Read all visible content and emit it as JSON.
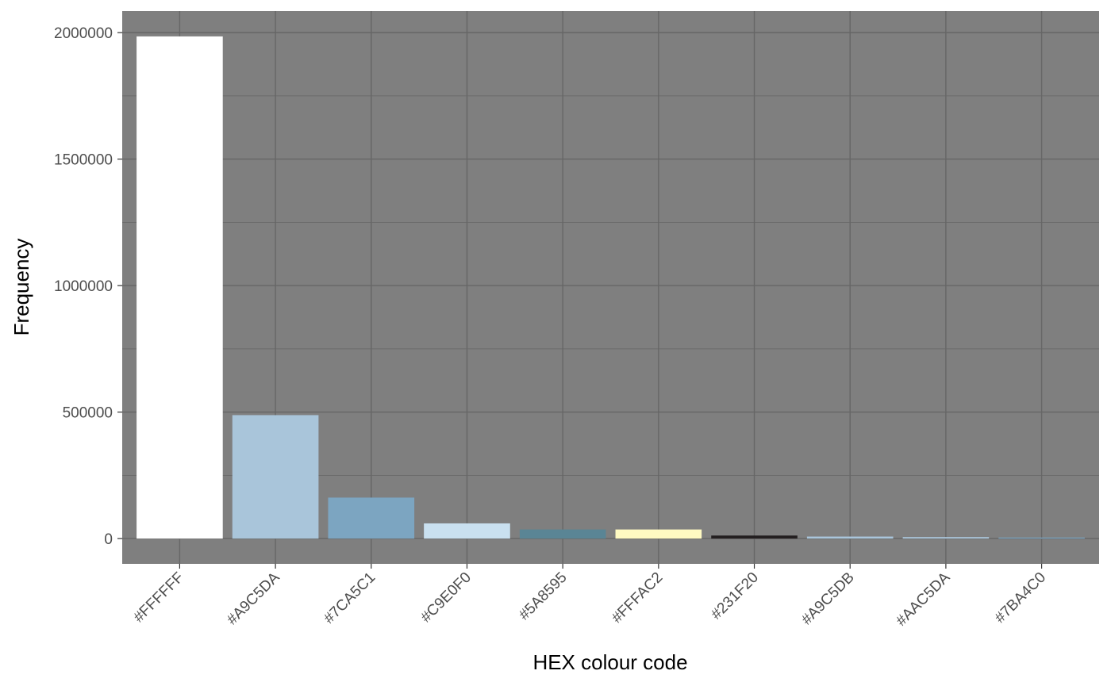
{
  "chart_data": {
    "type": "bar",
    "categories": [
      "#FFFFFF",
      "#A9C5DA",
      "#7CA5C1",
      "#C9E0F0",
      "#5A8595",
      "#FFFAC2",
      "#231F20",
      "#A9C5DB",
      "#AAC5DA",
      "#7BA4C0"
    ],
    "values": [
      1985000,
      488000,
      162000,
      60000,
      36000,
      36000,
      12000,
      8000,
      6000,
      4000
    ],
    "bar_colors": [
      "#FFFFFF",
      "#A9C5DA",
      "#7CA5C1",
      "#C9E0F0",
      "#5A8595",
      "#FFFAC2",
      "#231F20",
      "#A9C5DB",
      "#AAC5DA",
      "#7BA4C0"
    ],
    "xlabel": "HEX colour code",
    "ylabel": "Frequency",
    "ylim": [
      -100000,
      2085000
    ],
    "yticks": [
      0,
      500000,
      1000000,
      1500000,
      2000000
    ],
    "ytick_labels": [
      "0",
      "500000",
      "1000000",
      "1500000",
      "2000000"
    ],
    "grid": true,
    "panel_background": "#7F7F7F",
    "grid_color": "#666666"
  }
}
